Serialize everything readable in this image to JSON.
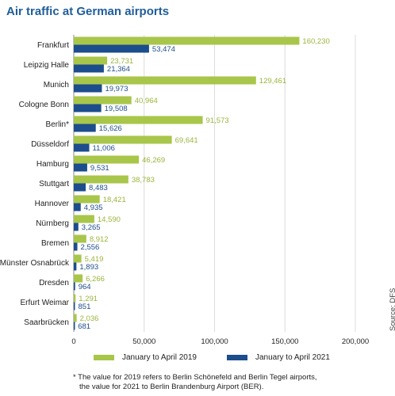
{
  "chart_data": {
    "type": "bar",
    "orientation": "horizontal",
    "title": "Air traffic at German airports",
    "categories": [
      "Frankfurt",
      "Leipzig Halle",
      "Munich",
      "Cologne Bonn",
      "Berlin*",
      "Düsseldorf",
      "Hamburg",
      "Stuttgart",
      "Hannover",
      "Nürnberg",
      "Bremen",
      "Münster Osnabrück",
      "Dresden",
      "Erfurt Weimar",
      "Saarbrücken"
    ],
    "series": [
      {
        "name": "January to April 2019",
        "color": "#a8c64a",
        "values": [
          160230,
          23731,
          129461,
          40964,
          91573,
          69641,
          46269,
          38783,
          18421,
          14590,
          8912,
          5419,
          6266,
          1291,
          2036
        ],
        "labels": [
          "160,230",
          "23,731",
          "129,461",
          "40,964",
          "91,573",
          "69,641",
          "46,269",
          "38,783",
          "18,421",
          "14,590",
          "8,912",
          "5,419",
          "6,266",
          "1,291",
          "2,036"
        ]
      },
      {
        "name": "January to April 2021",
        "color": "#1c4d8c",
        "values": [
          53474,
          21364,
          19973,
          19508,
          15626,
          11006,
          9531,
          8483,
          4935,
          3265,
          2556,
          1893,
          964,
          851,
          681
        ],
        "labels": [
          "53,474",
          "21,364",
          "19,973",
          "19,508",
          "15,626",
          "11,006",
          "9,531",
          "8,483",
          "4,935",
          "3,265",
          "2,556",
          "1,893",
          "964",
          "851",
          "681"
        ]
      }
    ],
    "xlim": [
      0,
      200000
    ],
    "xticks": [
      0,
      50000,
      100000,
      150000,
      200000
    ],
    "xtick_labels": [
      "0",
      "50,000",
      "100,000",
      "150,000",
      "200,000"
    ],
    "grid": true,
    "legend_position": "bottom",
    "footnote": [
      "* The value for 2019 refers to Berlin Schönefeld and Berlin Tegel airports,",
      "the value for 2021 to Berlin Brandenburg Airport (BER)."
    ],
    "source": "Source: DFS"
  }
}
